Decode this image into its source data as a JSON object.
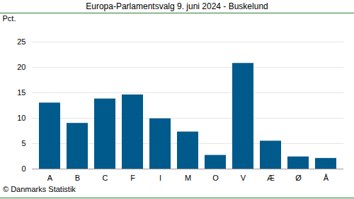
{
  "chart_data": {
    "type": "bar",
    "title": "Europa-Parlamentsvalg 9. juni 2024 - Buskelund",
    "y_label": "Pct.",
    "caption": "© Danmarks Statistik",
    "categories": [
      "A",
      "B",
      "C",
      "F",
      "I",
      "M",
      "O",
      "V",
      "Æ",
      "Ø",
      "Å"
    ],
    "values": [
      13.0,
      9.0,
      13.8,
      14.6,
      9.9,
      7.3,
      2.7,
      20.8,
      5.5,
      2.4,
      2.1
    ],
    "color": "#005a8c",
    "ylim": [
      0,
      25
    ],
    "yticks": [
      0,
      5,
      10,
      15,
      20,
      25
    ],
    "grid": true
  }
}
